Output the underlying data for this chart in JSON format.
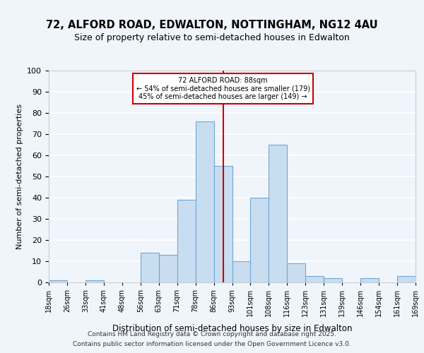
{
  "title": "72, ALFORD ROAD, EDWALTON, NOTTINGHAM, NG12 4AU",
  "subtitle": "Size of property relative to semi-detached houses in Edwalton",
  "xlabel": "Distribution of semi-detached houses by size in Edwalton",
  "ylabel": "Number of semi-detached properties",
  "bin_labels": [
    "18sqm",
    "26sqm",
    "33sqm",
    "41sqm",
    "48sqm",
    "56sqm",
    "63sqm",
    "71sqm",
    "78sqm",
    "86sqm",
    "93sqm",
    "101sqm",
    "108sqm",
    "116sqm",
    "123sqm",
    "131sqm",
    "139sqm",
    "146sqm",
    "154sqm",
    "161sqm",
    "169sqm"
  ],
  "bar_values": [
    1,
    0,
    1,
    0,
    0,
    14,
    13,
    39,
    76,
    55,
    10,
    40,
    65,
    9,
    3,
    2,
    0,
    2,
    0,
    3
  ],
  "bar_color": "#c9ddf0",
  "bar_edge_color": "#6fa8d6",
  "background_color": "#f0f5fc",
  "grid_color": "#ffffff",
  "property_line_x": 9,
  "property_line_color": "#cc0000",
  "annotation_title": "72 ALFORD ROAD: 88sqm",
  "annotation_line1": "← 54% of semi-detached houses are smaller (179)",
  "annotation_line2": "45% of semi-detached houses are larger (149) →",
  "annotation_box_color": "#ffffff",
  "annotation_border_color": "#cc0000",
  "ylim": [
    0,
    100
  ],
  "yticks": [
    0,
    10,
    20,
    30,
    40,
    50,
    60,
    70,
    80,
    90,
    100
  ],
  "footer1": "Contains HM Land Registry data © Crown copyright and database right 2025.",
  "footer2": "Contains public sector information licensed under the Open Government Licence v3.0."
}
